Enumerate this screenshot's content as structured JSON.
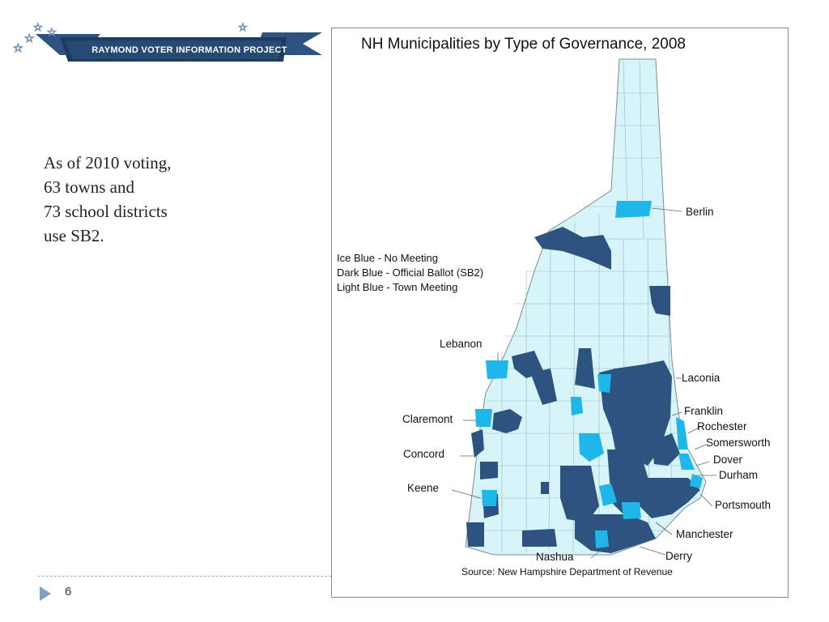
{
  "header": {
    "banner_text": "Raymond Voter Information Project"
  },
  "body": {
    "lines": [
      "As of 2010 voting,",
      "63 towns and",
      "73 school districts",
      "use SB2."
    ]
  },
  "footer": {
    "page_number": "6"
  },
  "map": {
    "title": "NH Municipalities by Type of Governance, 2008",
    "legend": [
      "Ice Blue - No Meeting",
      "Dark  Blue - Official Ballot (SB2)",
      "Light Blue - Town Meeting"
    ],
    "cities": {
      "berlin": "Berlin",
      "lebanon": "Lebanon",
      "laconia": "Laconia",
      "franklin": "Franklin",
      "rochester": "Rochester",
      "claremont": "Claremont",
      "somersworth": "Somersworth",
      "dover": "Dover",
      "concord": "Concord",
      "durham": "Durham",
      "keene": "Keene",
      "portsmouth": "Portsmouth",
      "manchester": "Manchester",
      "derry": "Derry",
      "nashua": "Nashua"
    },
    "source": "Source: New Hampshire Department of Revenue",
    "colors": {
      "ice_blue": "#1fb6ea",
      "dark_blue": "#2d5480",
      "light_blue": "#d7f4f8",
      "borders": "#7a8c99"
    }
  }
}
